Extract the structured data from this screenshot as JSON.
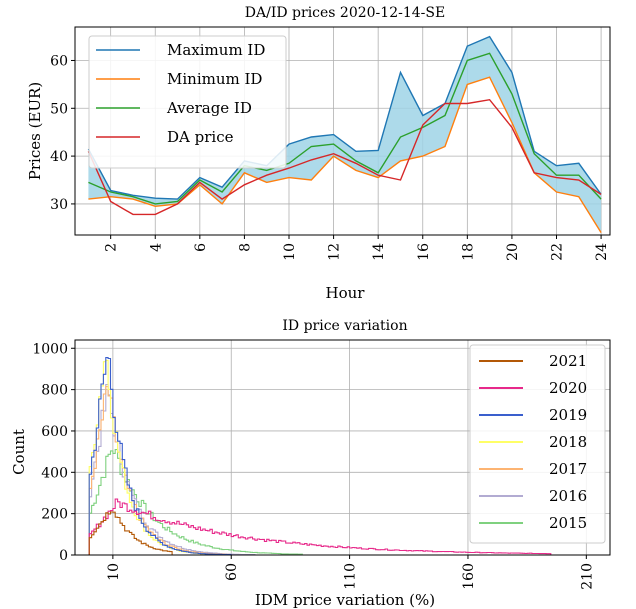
{
  "chart_data": [
    {
      "type": "line",
      "title": "DA/ID prices 2020-12-14-SE",
      "xlabel": "Hour",
      "ylabel": "Prices (EUR)",
      "xlim": [
        0.4,
        24.4
      ],
      "ylim": [
        23.5,
        67
      ],
      "x_ticks": [
        2,
        4,
        6,
        8,
        10,
        12,
        14,
        16,
        18,
        20,
        22,
        24
      ],
      "y_ticks": [
        30,
        40,
        50,
        60
      ],
      "grid": true,
      "legend_position": "top-left",
      "fill_between": {
        "upper": "Maximum ID",
        "lower": "Minimum ID",
        "color": "#9fd4e6"
      },
      "x": [
        1,
        2,
        3,
        4,
        5,
        6,
        7,
        8,
        9,
        10,
        11,
        12,
        13,
        14,
        15,
        16,
        17,
        18,
        19,
        20,
        21,
        22,
        23,
        24
      ],
      "series": [
        {
          "name": "Maximum ID",
          "color": "#1f77b4",
          "values": [
            41.5,
            32.8,
            31.8,
            31.2,
            31.0,
            35.5,
            33.5,
            39.0,
            38.0,
            42.5,
            44.0,
            44.5,
            41.0,
            41.2,
            57.5,
            48.5,
            51.0,
            63.0,
            65.0,
            57.5,
            41.0,
            38.0,
            38.5,
            32.0
          ]
        },
        {
          "name": "Minimum ID",
          "color": "#ff7f0e",
          "values": [
            31.0,
            31.5,
            31.0,
            29.5,
            30.0,
            34.0,
            30.0,
            36.5,
            34.5,
            35.5,
            35.0,
            40.0,
            37.0,
            35.5,
            39.0,
            40.0,
            42.0,
            55.0,
            56.5,
            47.0,
            36.5,
            32.5,
            31.5,
            24.0
          ]
        },
        {
          "name": "Average ID",
          "color": "#2ca02c",
          "values": [
            34.5,
            32.5,
            31.5,
            30.0,
            30.5,
            35.0,
            32.5,
            38.0,
            37.0,
            38.5,
            42.0,
            42.5,
            39.0,
            36.5,
            44.0,
            46.0,
            48.5,
            60.0,
            61.5,
            53.0,
            40.5,
            36.0,
            36.0,
            31.0
          ]
        },
        {
          "name": "DA price",
          "color": "#d62728",
          "values": [
            41.0,
            30.5,
            27.8,
            27.8,
            30.0,
            34.5,
            31.0,
            34.0,
            36.0,
            37.5,
            39.2,
            40.5,
            38.5,
            36.0,
            35.0,
            46.5,
            51.0,
            51.0,
            51.8,
            46.0,
            36.5,
            35.5,
            35.0,
            32.0
          ]
        }
      ]
    },
    {
      "type": "histogram",
      "title": "ID price variation",
      "xlabel": "IDM price variation (%)",
      "ylabel": "Count",
      "xlim": [
        -6,
        220
      ],
      "ylim": [
        0,
        1040
      ],
      "x_ticks": [
        10,
        60,
        110,
        160,
        210
      ],
      "y_ticks": [
        0,
        200,
        400,
        600,
        800,
        1000
      ],
      "grid": true,
      "legend_position": "top-right",
      "series": [
        {
          "name": "2021",
          "color": "#b35806",
          "start": 0,
          "end": 35,
          "peak_x": 10,
          "peak": 235,
          "decay": 9
        },
        {
          "name": "2020",
          "color": "#e7298a",
          "start": 0,
          "end": 195,
          "peak_x": 12,
          "peak": 255,
          "decay": 50
        },
        {
          "name": "2019",
          "color": "#3a5fcd",
          "start": 0,
          "end": 60,
          "peak_x": 8,
          "peak": 990,
          "decay": 8
        },
        {
          "name": "2018",
          "color": "#ffff66",
          "start": 0,
          "end": 60,
          "peak_x": 7,
          "peak": 1000,
          "decay": 8
        },
        {
          "name": "2017",
          "color": "#fdb472",
          "start": 0,
          "end": 60,
          "peak_x": 8,
          "peak": 820,
          "decay": 9
        },
        {
          "name": "2016",
          "color": "#b2abd2",
          "start": 0,
          "end": 70,
          "peak_x": 8,
          "peak": 800,
          "decay": 10
        },
        {
          "name": "2015",
          "color": "#7fd17f",
          "start": 0,
          "end": 90,
          "peak_x": 10,
          "peak": 530,
          "decay": 16
        }
      ]
    }
  ]
}
